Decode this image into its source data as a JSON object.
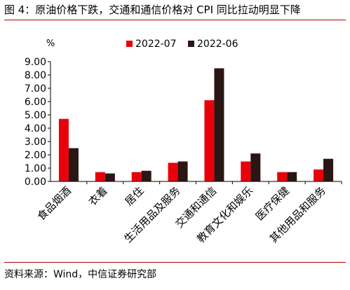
{
  "figure": {
    "title": "图 4：原油价格下跌，交通和通信价格对 CPI 同比拉动明显下降",
    "source": "资料来源：Wind，中信证券研究部"
  },
  "chart_data": {
    "type": "bar",
    "title": "",
    "ylabel": "%",
    "xlabel": "",
    "ylim": [
      0,
      9
    ],
    "yticks": [
      "0.00",
      "1.00",
      "2.00",
      "3.00",
      "4.00",
      "5.00",
      "6.00",
      "7.00",
      "8.00",
      "9.00"
    ],
    "grid": false,
    "legend_position": "top-center",
    "categories": [
      "食品烟酒",
      "衣着",
      "居住",
      "生活用品及服务",
      "交通和通信",
      "教育文化和娱乐",
      "医疗保健",
      "其他用品和服务"
    ],
    "series": [
      {
        "name": "2022-07",
        "color": "#e8000b",
        "values": [
          4.7,
          0.7,
          0.7,
          1.4,
          6.1,
          1.5,
          0.7,
          0.9
        ]
      },
      {
        "name": "2022-06",
        "color": "#2a1612",
        "values": [
          2.5,
          0.6,
          0.8,
          1.5,
          8.5,
          2.1,
          0.7,
          1.7
        ]
      }
    ]
  }
}
